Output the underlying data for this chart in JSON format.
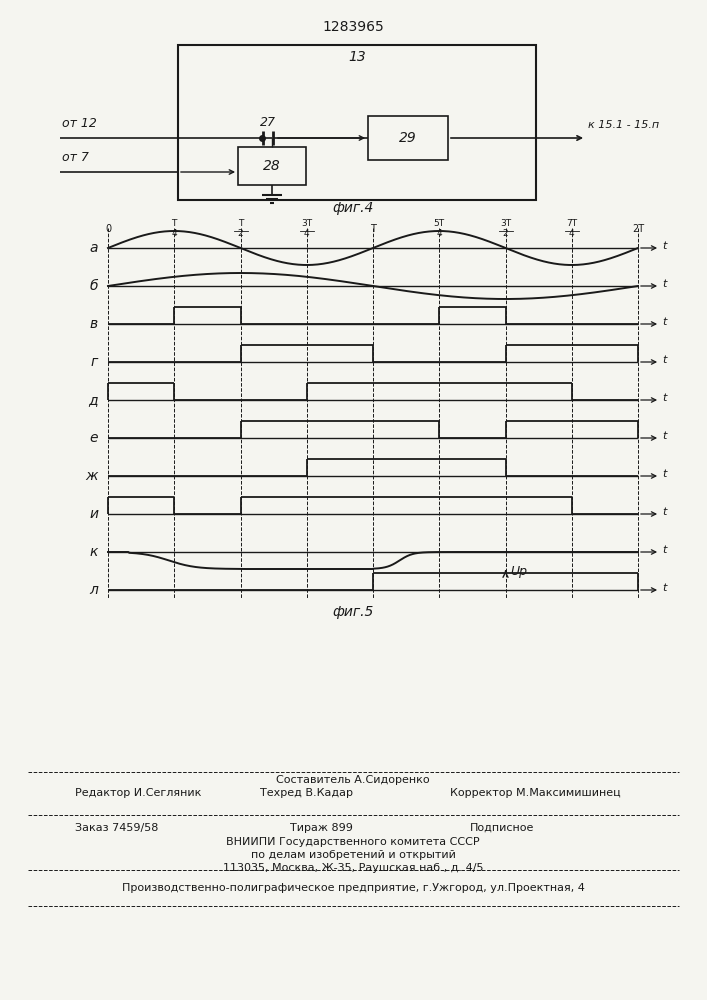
{
  "title_number": "1283965",
  "fig4_label": "фиг.4",
  "fig5_label": "фиг.5",
  "block13_label": "13",
  "block27_label": "27",
  "block28_label": "28",
  "block29_label": "29",
  "from12_label": "от 12",
  "from7_label": "от 7",
  "to15_label": "к 15.1 - 15.п",
  "signal_labels": [
    "а",
    "б",
    "в",
    "г",
    "д",
    "е",
    "ж",
    "и",
    "к",
    "л"
  ],
  "tick_labels_num": [
    "0",
    "T",
    "T",
    "3T",
    "T",
    "5T",
    "3T",
    "7T",
    "2T"
  ],
  "tick_labels_den": [
    "",
    "4",
    "2",
    "4",
    "",
    "4",
    "2",
    "4",
    ""
  ],
  "tick_positions": [
    0,
    0.25,
    0.5,
    0.75,
    1.0,
    1.25,
    1.5,
    1.75,
    2.0
  ],
  "Ur_label": "Uр",
  "footer_editor": "Редактор И.Сегляник",
  "footer_composer": "Составитель А.Сидоренко",
  "footer_tech": "Техред В.Кадар",
  "footer_corrector": "Корректор М.Максимишинец",
  "footer_order": "Заказ 7459/58",
  "footer_tirazh": "Тираж 899",
  "footer_podp": "Подписное",
  "footer_vniip1": "ВНИИПИ Государственного комитета СССР",
  "footer_vniip2": "по делам изобретений и открытий",
  "footer_vniip3": "113035, Москва, Ж-35, Раушская наб., д. 4/5",
  "footer_prod": "Производственно-полиграфическое предприятие, г.Ужгород, ул.Проектная, 4",
  "bg_color": "#f5f5f0",
  "line_color": "#1a1a1a"
}
